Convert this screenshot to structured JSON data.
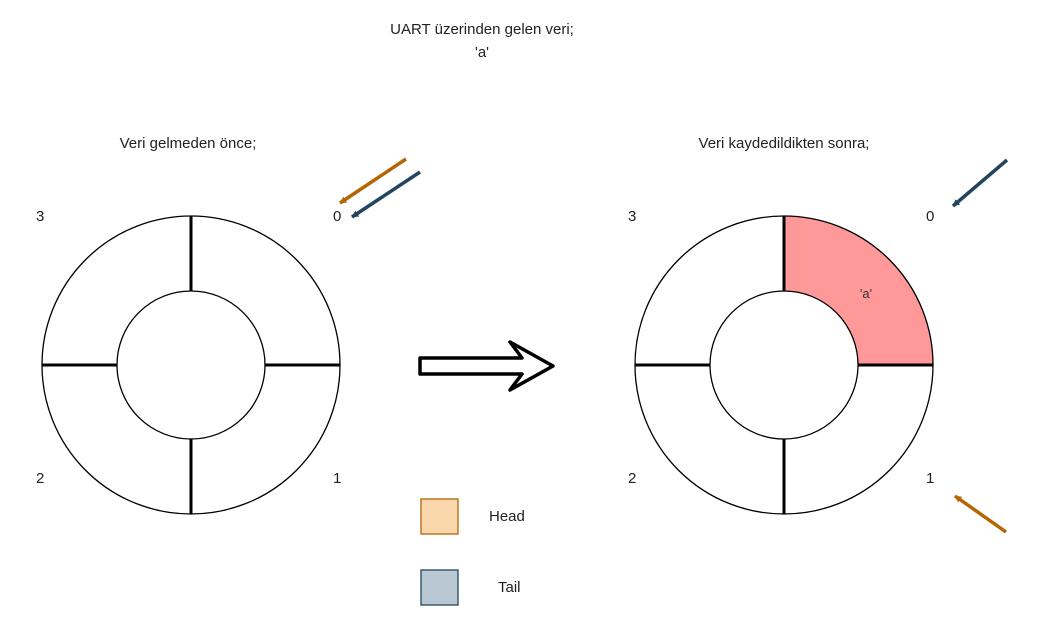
{
  "title": {
    "line1": "UART üzerinden gelen veri;",
    "line2": "'a'"
  },
  "before": {
    "label": "Veri gelmeden önce;",
    "indices": [
      "0",
      "1",
      "2",
      "3"
    ],
    "cells": [
      "",
      "",
      "",
      ""
    ],
    "head_index": 0,
    "tail_index": 0
  },
  "after": {
    "label": "Veri kaydedildikten sonra;",
    "indices": [
      "0",
      "1",
      "2",
      "3"
    ],
    "cells": [
      "'a'",
      "",
      "",
      ""
    ],
    "head_index": 1,
    "tail_index": 0
  },
  "legend": {
    "head_label": "Head",
    "tail_label": "Tail"
  },
  "colors": {
    "head": "#b46504",
    "tail": "#23445d",
    "head_fill": "#fad7ac",
    "tail_fill": "#bac8d3",
    "filled_cell": "#ff9999"
  }
}
